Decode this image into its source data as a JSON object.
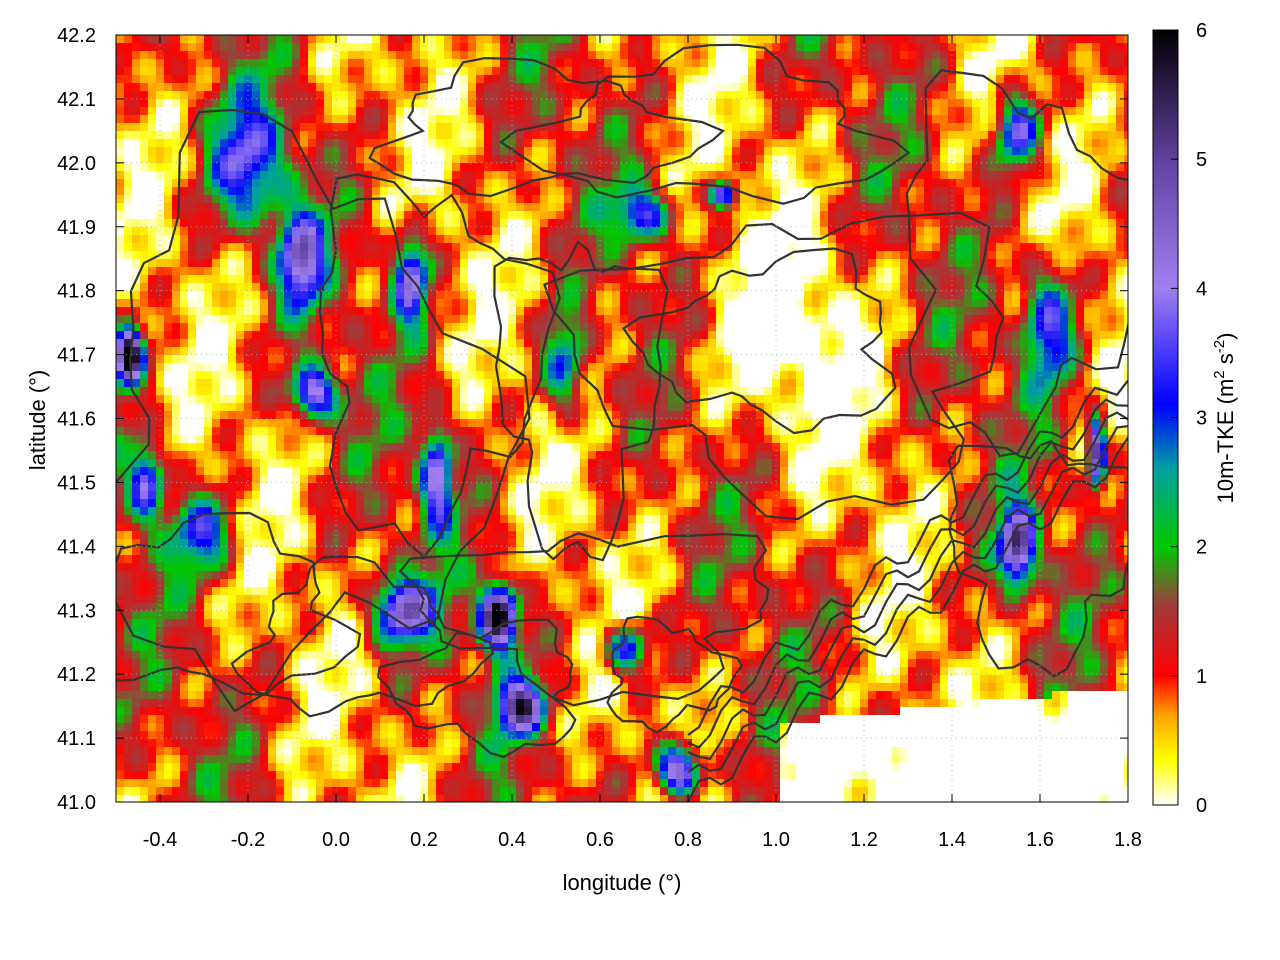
{
  "chart_data": {
    "type": "heatmap",
    "title": "",
    "xlabel": "longitude (°)",
    "ylabel": "latitude (°)",
    "xlim": [
      -0.5,
      1.8
    ],
    "ylim": [
      41.0,
      42.2
    ],
    "xticks": [
      "-0.4",
      "-0.2",
      "0.0",
      "0.2",
      "0.4",
      "0.6",
      "0.8",
      "1.0",
      "1.2",
      "1.4",
      "1.6",
      "1.8"
    ],
    "xtick_values": [
      -0.4,
      -0.2,
      0.0,
      0.2,
      0.4,
      0.6,
      0.8,
      1.0,
      1.2,
      1.4,
      1.6,
      1.8
    ],
    "yticks": [
      "41.0",
      "41.1",
      "41.2",
      "41.3",
      "41.4",
      "41.5",
      "41.6",
      "41.7",
      "41.8",
      "41.9",
      "42.0",
      "42.1",
      "42.2"
    ],
    "ytick_values": [
      41.0,
      41.1,
      41.2,
      41.3,
      41.4,
      41.5,
      41.6,
      41.7,
      41.8,
      41.9,
      42.0,
      42.1,
      42.2
    ],
    "grid": true,
    "colorbar": {
      "label_main": "10m-TKE (m",
      "label_sup1": "2",
      "label_mid": " s",
      "label_sup2": "-2",
      "label_end": ")",
      "range": [
        0,
        6
      ],
      "ticks": [
        "0",
        "1",
        "2",
        "3",
        "4",
        "5",
        "6"
      ],
      "tick_values": [
        0,
        1,
        2,
        3,
        4,
        5,
        6
      ],
      "colors": [
        {
          "v": 0.0,
          "c": "#ffffff"
        },
        {
          "v": 0.35,
          "c": "#ffff00"
        },
        {
          "v": 0.7,
          "c": "#ffa000"
        },
        {
          "v": 1.0,
          "c": "#ff0000"
        },
        {
          "v": 1.55,
          "c": "#a03c3c"
        },
        {
          "v": 2.0,
          "c": "#00c800"
        },
        {
          "v": 2.6,
          "c": "#00a0a0"
        },
        {
          "v": 3.1,
          "c": "#0000ff"
        },
        {
          "v": 4.0,
          "c": "#a080f0"
        },
        {
          "v": 5.0,
          "c": "#6040a0"
        },
        {
          "v": 6.0,
          "c": "#000000"
        }
      ]
    },
    "hotspots": [
      {
        "x": -0.08,
        "y": 41.85,
        "v": 3.2,
        "sx": 0.05,
        "sy": 0.07
      },
      {
        "x": 0.17,
        "y": 41.82,
        "v": 3.3,
        "sx": 0.04,
        "sy": 0.07
      },
      {
        "x": 0.23,
        "y": 41.51,
        "v": 3.2,
        "sx": 0.035,
        "sy": 0.08
      },
      {
        "x": -0.05,
        "y": 41.64,
        "v": 3.5,
        "sx": 0.05,
        "sy": 0.04
      },
      {
        "x": -0.47,
        "y": 41.7,
        "v": 5.5,
        "sx": 0.03,
        "sy": 0.04
      },
      {
        "x": -0.43,
        "y": 41.5,
        "v": 3.0,
        "sx": 0.04,
        "sy": 0.06
      },
      {
        "x": 0.15,
        "y": 41.3,
        "v": 3.4,
        "sx": 0.07,
        "sy": 0.05
      },
      {
        "x": 0.37,
        "y": 41.29,
        "v": 5.5,
        "sx": 0.04,
        "sy": 0.05
      },
      {
        "x": 0.42,
        "y": 41.15,
        "v": 4.0,
        "sx": 0.05,
        "sy": 0.04
      },
      {
        "x": 0.66,
        "y": 41.24,
        "v": 3.0,
        "sx": 0.05,
        "sy": 0.04
      },
      {
        "x": 0.78,
        "y": 41.05,
        "v": 4.5,
        "sx": 0.05,
        "sy": 0.04
      },
      {
        "x": 0.52,
        "y": 41.68,
        "v": 2.2,
        "sx": 0.05,
        "sy": 0.08
      },
      {
        "x": -0.2,
        "y": 42.0,
        "v": 2.3,
        "sx": 0.09,
        "sy": 0.1
      },
      {
        "x": -0.3,
        "y": 41.42,
        "v": 2.2,
        "sx": 0.07,
        "sy": 0.06
      },
      {
        "x": 1.55,
        "y": 41.4,
        "v": 4.2,
        "sx": 0.04,
        "sy": 0.06
      },
      {
        "x": 1.62,
        "y": 41.75,
        "v": 2.6,
        "sx": 0.06,
        "sy": 0.1
      },
      {
        "x": 1.55,
        "y": 42.05,
        "v": 2.8,
        "sx": 0.05,
        "sy": 0.06
      },
      {
        "x": 1.73,
        "y": 41.55,
        "v": 5.0,
        "sx": 0.02,
        "sy": 0.05
      },
      {
        "x": 0.7,
        "y": 41.92,
        "v": 2.5,
        "sx": 0.06,
        "sy": 0.04
      },
      {
        "x": 0.88,
        "y": 41.95,
        "v": 3.5,
        "sx": 0.03,
        "sy": 0.02
      }
    ]
  }
}
